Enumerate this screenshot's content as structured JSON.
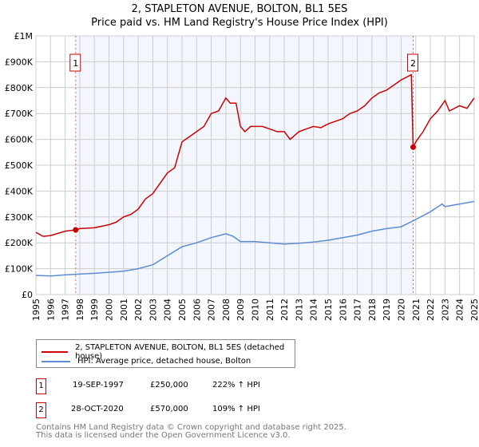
{
  "chart_data": {
    "type": "line",
    "title": "2, STAPLETON AVENUE, BOLTON, BL1 5ES",
    "subtitle": "Price paid vs. HM Land Registry's House Price Index (HPI)",
    "xlim": [
      1995,
      2025
    ],
    "ylim": [
      0,
      1000000
    ],
    "y_ticks": [
      {
        "v": 0,
        "label": "£0"
      },
      {
        "v": 100000,
        "label": "£100K"
      },
      {
        "v": 200000,
        "label": "£200K"
      },
      {
        "v": 300000,
        "label": "£300K"
      },
      {
        "v": 400000,
        "label": "£400K"
      },
      {
        "v": 500000,
        "label": "£500K"
      },
      {
        "v": 600000,
        "label": "£600K"
      },
      {
        "v": 700000,
        "label": "£700K"
      },
      {
        "v": 800000,
        "label": "£800K"
      },
      {
        "v": 900000,
        "label": "£900K"
      },
      {
        "v": 1000000,
        "label": "£1M"
      }
    ],
    "x_ticks": [
      "1995",
      "1996",
      "1997",
      "1998",
      "1999",
      "2000",
      "2001",
      "2002",
      "2003",
      "2004",
      "2005",
      "2006",
      "2007",
      "2008",
      "2009",
      "2010",
      "2011",
      "2012",
      "2013",
      "2014",
      "2015",
      "2016",
      "2017",
      "2018",
      "2019",
      "2020",
      "2021",
      "2022",
      "2023",
      "2024",
      "2025"
    ],
    "shaded_range": [
      1997.72,
      2020.82
    ],
    "series": [
      {
        "name": "2, STAPLETON AVENUE, BOLTON, BL1 5ES (detached house)",
        "color": "#cc0000",
        "x": [
          1995,
          1995.5,
          1996,
          1997,
          1997.72,
          1998,
          1999,
          2000,
          2000.5,
          2001,
          2001.5,
          2002,
          2002.5,
          2003,
          2003.5,
          2004,
          2004.5,
          2005,
          2005.5,
          2006,
          2006.5,
          2007,
          2007.5,
          2008,
          2008.3,
          2008.7,
          2009,
          2009.3,
          2009.7,
          2010,
          2010.5,
          2011,
          2011.5,
          2012,
          2012.4,
          2013,
          2013.5,
          2014,
          2014.5,
          2015,
          2015.5,
          2016,
          2016.5,
          2017,
          2017.5,
          2018,
          2018.5,
          2019,
          2019.5,
          2020,
          2020.7,
          2020.82,
          2021,
          2021.5,
          2022,
          2022.5,
          2023,
          2023.3,
          2024,
          2024.5,
          2025
        ],
        "y": [
          240000,
          225000,
          228000,
          245000,
          250000,
          255000,
          258000,
          270000,
          280000,
          300000,
          310000,
          330000,
          370000,
          390000,
          430000,
          470000,
          490000,
          590000,
          610000,
          630000,
          650000,
          700000,
          710000,
          760000,
          740000,
          740000,
          650000,
          630000,
          650000,
          650000,
          650000,
          640000,
          630000,
          630000,
          600000,
          630000,
          640000,
          650000,
          645000,
          660000,
          670000,
          680000,
          700000,
          710000,
          730000,
          760000,
          780000,
          790000,
          810000,
          830000,
          850000,
          570000,
          590000,
          630000,
          680000,
          710000,
          750000,
          710000,
          730000,
          720000,
          760000
        ]
      },
      {
        "name": "HPI: Average price, detached house, Bolton",
        "color": "#5b8dd6",
        "x": [
          1995,
          1996,
          1997,
          1998,
          1999,
          2000,
          2001,
          2002,
          2003,
          2004,
          2005,
          2006,
          2007,
          2008,
          2008.5,
          2009,
          2010,
          2011,
          2012,
          2013,
          2014,
          2015,
          2016,
          2017,
          2018,
          2019,
          2020,
          2021,
          2022,
          2022.8,
          2023,
          2024,
          2025
        ],
        "y": [
          74000,
          72000,
          76000,
          79000,
          82000,
          86000,
          90000,
          100000,
          115000,
          150000,
          185000,
          200000,
          220000,
          235000,
          225000,
          205000,
          205000,
          200000,
          195000,
          198000,
          203000,
          210000,
          220000,
          230000,
          245000,
          255000,
          262000,
          290000,
          320000,
          350000,
          340000,
          350000,
          360000
        ]
      }
    ],
    "sales": [
      {
        "label": "1",
        "x": 1997.72,
        "y": 250000
      },
      {
        "label": "2",
        "x": 2020.82,
        "y": 570000
      }
    ]
  },
  "legend": {
    "red": "2, STAPLETON AVENUE, BOLTON, BL1 5ES (detached house)",
    "blue": "HPI: Average price, detached house, Bolton"
  },
  "sales_table": [
    {
      "num": "1",
      "date": "19-SEP-1997",
      "price": "£250,000",
      "hpi": "222% ↑ HPI"
    },
    {
      "num": "2",
      "date": "28-OCT-2020",
      "price": "£570,000",
      "hpi": "109% ↑ HPI"
    }
  ],
  "footer": {
    "line1": "Contains HM Land Registry data © Crown copyright and database right 2025.",
    "line2": "This data is licensed under the Open Government Licence v3.0."
  }
}
